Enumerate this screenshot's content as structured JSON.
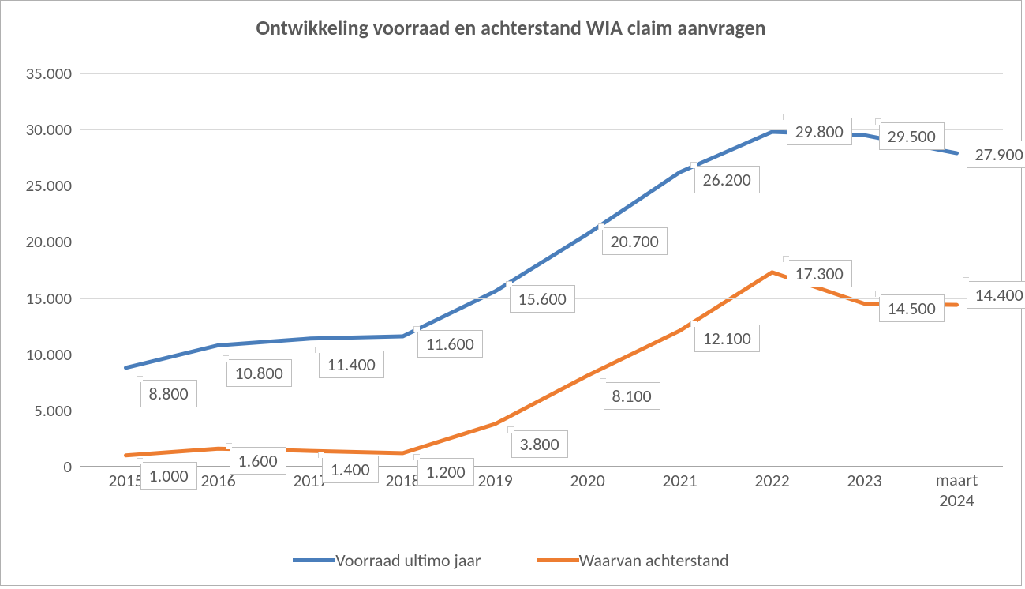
{
  "chart": {
    "type": "line",
    "title": "Ontwikkeling voorraad en achterstand WIA claim aanvragen",
    "title_fontsize": 26,
    "title_color": "#595959",
    "background_color": "#ffffff",
    "border_color": "#b0b0b0",
    "grid_color": "#d9d9d9",
    "axis_color": "#a6a6a6",
    "axis_label_color": "#595959",
    "axis_fontsize": 21,
    "line_width": 5,
    "ylim": [
      0,
      35000
    ],
    "ytick_step": 5000,
    "ytick_labels": [
      "0",
      "5.000",
      "10.000",
      "15.000",
      "20.000",
      "25.000",
      "30.000",
      "35.000"
    ],
    "categories": [
      "2015",
      "2016",
      "2017",
      "2018",
      "2019",
      "2020",
      "2021",
      "2022",
      "2023",
      "maart 2024"
    ],
    "series": [
      {
        "name": "Voorraad ultimo jaar",
        "color": "#4a7ebb",
        "values": [
          8800,
          10800,
          11400,
          11600,
          15600,
          20700,
          26200,
          29800,
          29500,
          27900
        ],
        "labels": [
          "8.800",
          "10.800",
          "11.400",
          "11.600",
          "15.600",
          "20.700",
          "26.200",
          "29.800",
          "29.500",
          "27.900"
        ]
      },
      {
        "name": "Waarvan achterstand",
        "color": "#ed7d31",
        "values": [
          1000,
          1600,
          1400,
          1200,
          3800,
          8100,
          12100,
          17300,
          14500,
          14400
        ],
        "labels": [
          "1.000",
          "1.600",
          "1.400",
          "1.200",
          "3.800",
          "8.100",
          "12.100",
          "17.300",
          "14.500",
          "14.400"
        ]
      }
    ],
    "data_label_bg": "#ffffff",
    "data_label_border": "#bfbfbf",
    "data_label_fontsize": 22,
    "legend_fontsize": 22
  }
}
